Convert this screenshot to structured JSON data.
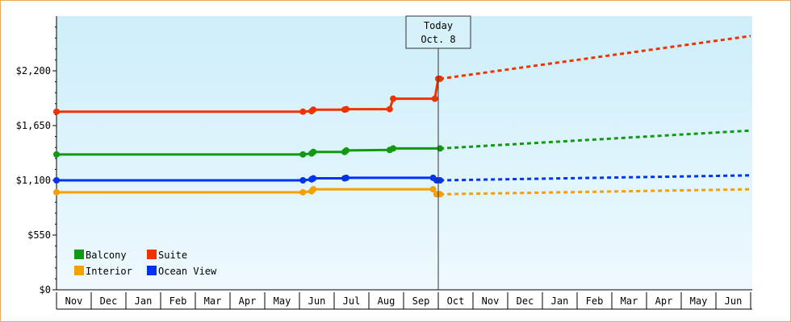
{
  "chart_data": {
    "type": "line",
    "title": "",
    "xlabel": "",
    "ylabel": "",
    "ylim": [
      0,
      2750
    ],
    "y_ticks": [
      0,
      550,
      1100,
      1650,
      2200
    ],
    "y_tick_labels": [
      "$0",
      "$550",
      "$1,100",
      "$1,650",
      "$2,200"
    ],
    "month_labels": [
      "Nov",
      "Dec",
      "Jan",
      "Feb",
      "Mar",
      "Apr",
      "May",
      "Jun",
      "Jul",
      "Aug",
      "Sep",
      "Oct",
      "Nov",
      "Dec",
      "Jan",
      "Feb",
      "Mar",
      "Apr",
      "May",
      "Jun"
    ],
    "x_units": "months from start of Nov (first month column)",
    "today_x": 11.0,
    "today_label_1": "Today",
    "today_label_2": "Oct. 8",
    "series": [
      {
        "name": "Suite",
        "color": "#ee3300",
        "history": [
          [
            0,
            1790
          ],
          [
            7.05,
            1790
          ],
          [
            7.1,
            1790
          ],
          [
            7.35,
            1795
          ],
          [
            7.4,
            1810
          ],
          [
            8.3,
            1810
          ],
          [
            8.35,
            1815
          ],
          [
            9.6,
            1815
          ],
          [
            9.7,
            1920
          ],
          [
            10.9,
            1920
          ],
          [
            11.0,
            2120
          ],
          [
            11.05,
            2120
          ]
        ],
        "forecast": [
          [
            11.05,
            2120
          ],
          [
            20.0,
            2550
          ]
        ]
      },
      {
        "name": "Balcony",
        "color": "#119911",
        "history": [
          [
            0,
            1360
          ],
          [
            7.05,
            1360
          ],
          [
            7.1,
            1360
          ],
          [
            7.35,
            1370
          ],
          [
            7.4,
            1385
          ],
          [
            8.3,
            1385
          ],
          [
            8.35,
            1400
          ],
          [
            9.6,
            1405
          ],
          [
            9.7,
            1420
          ],
          [
            11.05,
            1420
          ]
        ],
        "forecast": [
          [
            11.05,
            1420
          ],
          [
            20.0,
            1600
          ]
        ]
      },
      {
        "name": "Ocean View",
        "color": "#0033ee",
        "history": [
          [
            0,
            1100
          ],
          [
            7.05,
            1100
          ],
          [
            7.1,
            1100
          ],
          [
            7.35,
            1110
          ],
          [
            7.4,
            1120
          ],
          [
            8.3,
            1120
          ],
          [
            8.35,
            1125
          ],
          [
            9.6,
            1125
          ],
          [
            9.7,
            1125
          ],
          [
            10.85,
            1125
          ],
          [
            10.95,
            1100
          ],
          [
            11.05,
            1100
          ]
        ],
        "forecast": [
          [
            11.05,
            1100
          ],
          [
            20.0,
            1150
          ]
        ]
      },
      {
        "name": "Interior",
        "color": "#f5a000",
        "history": [
          [
            0,
            980
          ],
          [
            7.05,
            980
          ],
          [
            7.1,
            980
          ],
          [
            7.35,
            990
          ],
          [
            7.4,
            1010
          ],
          [
            8.3,
            1010
          ],
          [
            8.35,
            1010
          ],
          [
            9.6,
            1010
          ],
          [
            9.7,
            1010
          ],
          [
            10.85,
            1010
          ],
          [
            10.95,
            960
          ],
          [
            11.05,
            960
          ]
        ],
        "forecast": [
          [
            11.05,
            960
          ],
          [
            20.0,
            1010
          ]
        ]
      }
    ],
    "legend": [
      {
        "label": "Balcony",
        "color": "#119911"
      },
      {
        "label": "Suite",
        "color": "#ee3300"
      },
      {
        "label": "Interior",
        "color": "#f5a000"
      },
      {
        "label": "Ocean View",
        "color": "#0033ee"
      }
    ],
    "legend_position": "bottom-left",
    "grid": false
  }
}
